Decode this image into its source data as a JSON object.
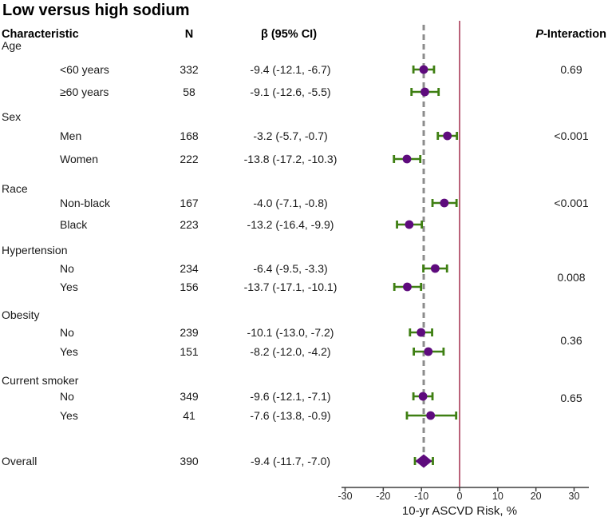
{
  "title": "Low versus high sodium",
  "header": {
    "characteristic": "Characteristic",
    "n": "N",
    "beta": "β (95% CI)",
    "p_italic": "P",
    "p_rest": "-Interaction"
  },
  "colors": {
    "marker": "#5e0b7d",
    "error_bar": "#3e7f12",
    "zero_line": "#a93b58",
    "reference_line": "#8c8c8c",
    "axis": "#3f3f3f",
    "text": "#1a1a1a"
  },
  "chart_data": {
    "type": "scatter",
    "subtype": "forest-plot",
    "title": "Low versus high sodium",
    "xlabel": "10-yr ASCVD Risk, %",
    "xlim": [
      -31,
      34
    ],
    "xticks": [
      -30,
      -20,
      -10,
      0,
      10,
      20,
      30
    ],
    "zero_line": 0,
    "reference_line": -9.4,
    "grid": false,
    "legend": "none",
    "groups": [
      {
        "label": "Age",
        "p_interaction": "0.69",
        "items": [
          {
            "label": "<60 years",
            "n": "332",
            "beta": "-9.4 (-12.1, -6.7)",
            "est": -9.4,
            "lo": -12.1,
            "hi": -6.7
          },
          {
            "label": "≥60 years",
            "n": "58",
            "beta": "-9.1 (-12.6, -5.5)",
            "est": -9.1,
            "lo": -12.6,
            "hi": -5.5
          }
        ]
      },
      {
        "label": "Sex",
        "p_interaction": "<0.001",
        "items": [
          {
            "label": "Men",
            "n": "168",
            "beta": "-3.2 (-5.7, -0.7)",
            "est": -3.2,
            "lo": -5.7,
            "hi": -0.7
          },
          {
            "label": "Women",
            "n": "222",
            "beta": "-13.8 (-17.2, -10.3)",
            "est": -13.8,
            "lo": -17.2,
            "hi": -10.3
          }
        ]
      },
      {
        "label": "Race",
        "p_interaction": "<0.001",
        "items": [
          {
            "label": "Non-black",
            "n": "167",
            "beta": "-4.0 (-7.1, -0.8)",
            "est": -4.0,
            "lo": -7.1,
            "hi": -0.8
          },
          {
            "label": "Black",
            "n": "223",
            "beta": "-13.2 (-16.4, -9.9)",
            "est": -13.2,
            "lo": -16.4,
            "hi": -9.9
          }
        ]
      },
      {
        "label": "Hypertension",
        "p_interaction": "0.008",
        "items": [
          {
            "label": "No",
            "n": "234",
            "beta": "-6.4 (-9.5, -3.3)",
            "est": -6.4,
            "lo": -9.5,
            "hi": -3.3
          },
          {
            "label": "Yes",
            "n": "156",
            "beta": "-13.7 (-17.1, -10.1)",
            "est": -13.7,
            "lo": -17.1,
            "hi": -10.1
          }
        ]
      },
      {
        "label": "Obesity",
        "p_interaction": "0.36",
        "items": [
          {
            "label": "No",
            "n": "239",
            "beta": "-10.1 (-13.0, -7.2)",
            "est": -10.1,
            "lo": -13.0,
            "hi": -7.2
          },
          {
            "label": "Yes",
            "n": "151",
            "beta": "-8.2 (-12.0, -4.2)",
            "est": -8.2,
            "lo": -12.0,
            "hi": -4.2
          }
        ]
      },
      {
        "label": "Current smoker",
        "p_interaction": "0.65",
        "items": [
          {
            "label": "No",
            "n": "349",
            "beta": "-9.6 (-12.1, -7.1)",
            "est": -9.6,
            "lo": -12.1,
            "hi": -7.1
          },
          {
            "label": "Yes",
            "n": "41",
            "beta": "-7.6 (-13.8, -0.9)",
            "est": -7.6,
            "lo": -13.8,
            "hi": -0.9
          }
        ]
      }
    ],
    "overall": {
      "label": "Overall",
      "n": "390",
      "beta": "-9.4 (-11.7, -7.0)",
      "est": -9.4,
      "lo": -11.7,
      "hi": -7.0,
      "marker": "diamond"
    }
  }
}
